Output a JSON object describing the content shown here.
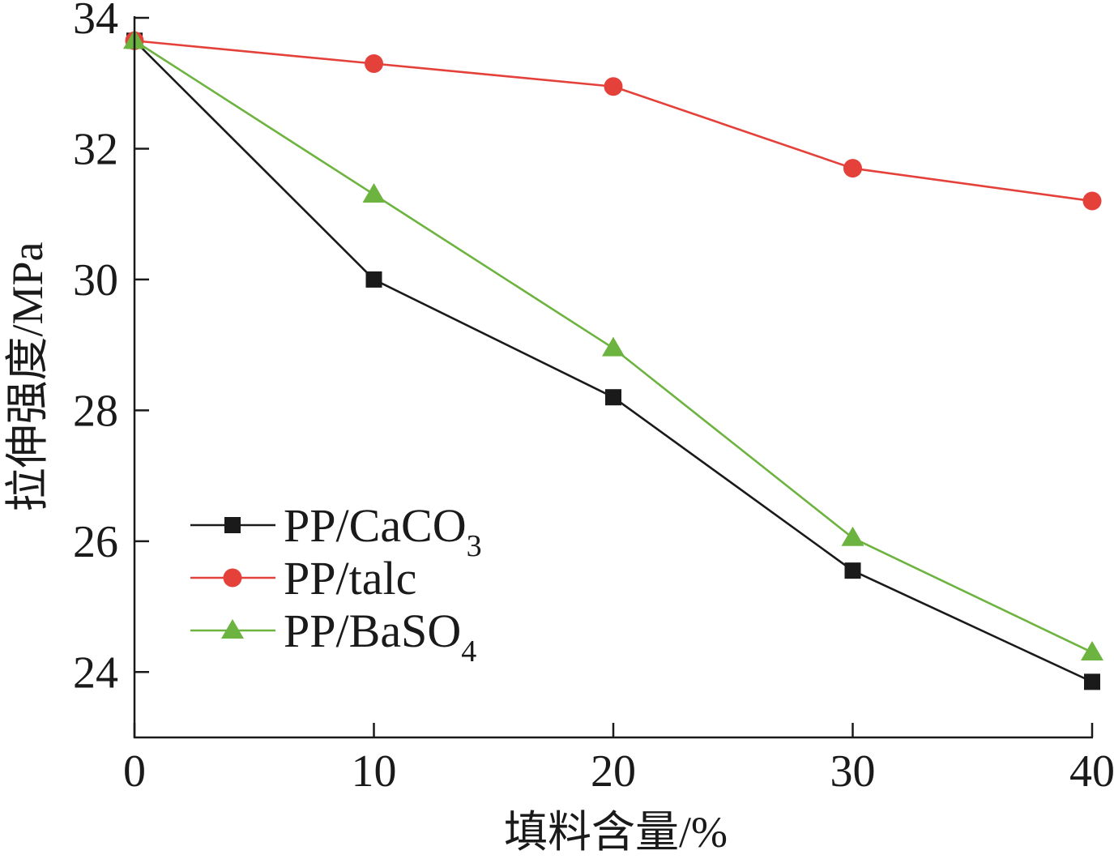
{
  "chart_data": {
    "type": "line",
    "x": [
      0,
      10,
      20,
      30,
      40
    ],
    "xlim": [
      0,
      40
    ],
    "ylim": [
      23,
      34
    ],
    "xticks": [
      0,
      10,
      20,
      30,
      40
    ],
    "yticks": [
      24,
      26,
      28,
      30,
      32,
      34
    ],
    "xlabel": "填料含量/%",
    "ylabel": "拉伸强度/MPa",
    "grid": false,
    "legend": "lower-left",
    "series": [
      {
        "name": "PP/CaCO3",
        "color": "#1a1a1a",
        "marker": "square",
        "values": [
          33.65,
          30.0,
          28.2,
          25.55,
          23.85
        ]
      },
      {
        "name": "PP/talc",
        "color": "#e5413b",
        "marker": "circle",
        "values": [
          33.65,
          33.3,
          32.95,
          31.7,
          31.2
        ]
      },
      {
        "name": "PP/BaSO4",
        "color": "#6db33f",
        "marker": "triangle",
        "values": [
          33.65,
          31.3,
          28.95,
          26.05,
          24.3
        ]
      }
    ]
  }
}
